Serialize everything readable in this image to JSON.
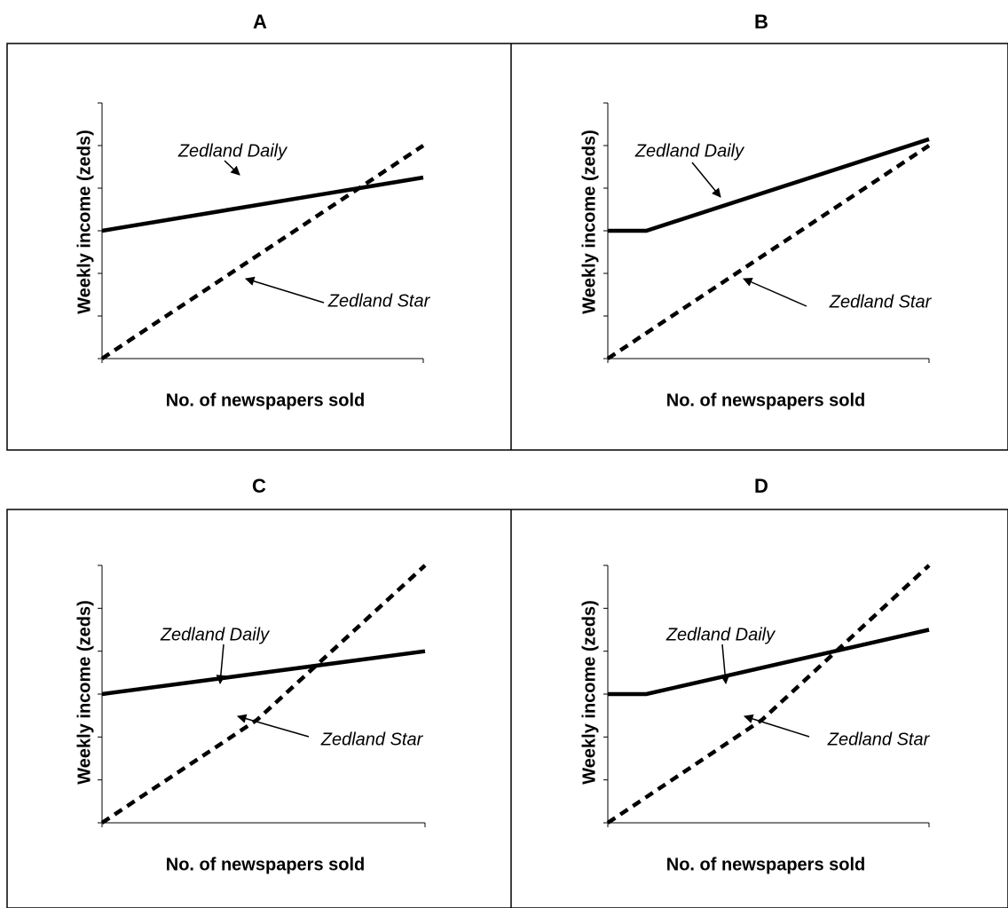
{
  "chart_data": [
    {
      "type": "line",
      "panel": "A",
      "xlabel": "No. of newspapers sold",
      "ylabel": "Weekly income (zeds)",
      "xlim": [
        0,
        10
      ],
      "ylim": [
        0,
        6
      ],
      "y_ticks": [
        0,
        1,
        2,
        3,
        4,
        5,
        6
      ],
      "x_ticks": [
        0,
        10
      ],
      "grid": false,
      "series": [
        {
          "name": "Zedland Daily",
          "style": "solid",
          "x": [
            0,
            10
          ],
          "y": [
            3.0,
            4.25
          ]
        },
        {
          "name": "Zedland Star",
          "style": "dashed",
          "x": [
            0,
            10
          ],
          "y": [
            0,
            5.0
          ]
        }
      ],
      "annotations": [
        {
          "text": "Zedland Daily",
          "series": "Zedland Daily"
        },
        {
          "text": "Zedland Star",
          "series": "Zedland Star"
        }
      ]
    },
    {
      "type": "line",
      "panel": "B",
      "xlabel": "No. of newspapers sold",
      "ylabel": "Weekly income (zeds)",
      "xlim": [
        0,
        10
      ],
      "ylim": [
        0,
        6
      ],
      "y_ticks": [
        0,
        1,
        2,
        3,
        4,
        5,
        6
      ],
      "x_ticks": [
        0,
        10
      ],
      "grid": false,
      "series": [
        {
          "name": "Zedland Daily",
          "style": "solid",
          "x": [
            0,
            1.2,
            10
          ],
          "y": [
            3.0,
            3.0,
            5.15
          ]
        },
        {
          "name": "Zedland Star",
          "style": "dashed",
          "x": [
            0,
            10
          ],
          "y": [
            0,
            5.0
          ]
        }
      ],
      "annotations": [
        {
          "text": "Zedland Daily",
          "series": "Zedland Daily"
        },
        {
          "text": "Zedland Star",
          "series": "Zedland Star"
        }
      ]
    },
    {
      "type": "line",
      "panel": "C",
      "xlabel": "No. of newspapers sold",
      "ylabel": "Weekly income (zeds)",
      "xlim": [
        0,
        10
      ],
      "ylim": [
        0,
        6
      ],
      "y_ticks": [
        0,
        1,
        2,
        3,
        4,
        5,
        6
      ],
      "x_ticks": [
        0,
        10
      ],
      "grid": false,
      "series": [
        {
          "name": "Zedland Daily",
          "style": "solid",
          "x": [
            0,
            10
          ],
          "y": [
            3.0,
            4.0
          ]
        },
        {
          "name": "Zedland Star",
          "style": "dashed",
          "x": [
            0,
            4.8,
            10
          ],
          "y": [
            0,
            2.4,
            6.0
          ]
        }
      ],
      "annotations": [
        {
          "text": "Zedland Daily",
          "series": "Zedland Daily"
        },
        {
          "text": "Zedland Star",
          "series": "Zedland Star"
        }
      ]
    },
    {
      "type": "line",
      "panel": "D",
      "xlabel": "No. of newspapers sold",
      "ylabel": "Weekly income (zeds)",
      "xlim": [
        0,
        10
      ],
      "ylim": [
        0,
        6
      ],
      "y_ticks": [
        0,
        1,
        2,
        3,
        4,
        5,
        6
      ],
      "x_ticks": [
        0,
        10
      ],
      "grid": false,
      "series": [
        {
          "name": "Zedland Daily",
          "style": "solid",
          "x": [
            0,
            1.2,
            10
          ],
          "y": [
            3.0,
            3.0,
            4.5
          ]
        },
        {
          "name": "Zedland Star",
          "style": "dashed",
          "x": [
            0,
            4.8,
            10
          ],
          "y": [
            0,
            2.4,
            6.0
          ]
        }
      ],
      "annotations": [
        {
          "text": "Zedland Daily",
          "series": "Zedland Daily"
        },
        {
          "text": "Zedland Star",
          "series": "Zedland Star"
        }
      ]
    }
  ]
}
